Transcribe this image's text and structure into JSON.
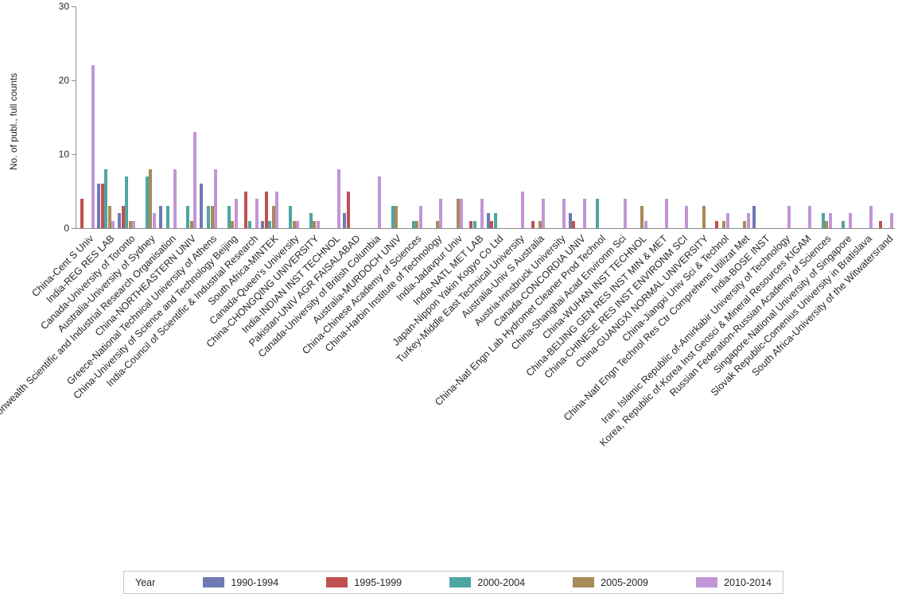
{
  "chart_data": {
    "type": "bar",
    "title": "",
    "ylabel": "No. of publ., full counts",
    "xlabel": "",
    "ylim": [
      0,
      30
    ],
    "yticks": [
      0,
      10,
      20,
      30
    ],
    "grid": false,
    "legend_position": "bottom",
    "legend_title": "Year",
    "categories": [
      "China-Cent S Univ",
      "India-REG RES LAB",
      "Canada-University of Toronto",
      "Australia-University of Sydney",
      "Australia-Commonwealth Scientific and Industrial Research Organisation",
      "China-NORTHEASTERN UNIV",
      "Greece-National Technical University of Athens",
      "China-University of Science and Technology Beijing",
      "India-Council of Scientific & Industrial Research",
      "South Africa-MINTEK",
      "Canada-Queen's University",
      "China-CHONGQING UNIVERSITY",
      "India-INDIAN INST TECHNOL",
      "Pakistan-UNIV AGR FAISALABAD",
      "Canada-University of British Columbia",
      "Australia-MURDOCH UNIV",
      "China-Chinese Academy of Sciences",
      "China-Harbin Institute of Technology",
      "India-Jadavpur Univ",
      "India-NATL MET LAB",
      "Japan-Nippon Yakin Kogyo Co Ltd",
      "Turkey-Middle East Technical University",
      "Australia-Univ S Australia",
      "Austria-Innsbruck University",
      "Canada-CONCORDIA UNIV",
      "China-Natl Engn Lab Hydromet Cleaner Prod Technol",
      "China-Shanghai Acad Environm Sci",
      "China-WUHAN INST TECHNOL",
      "China-BEIJING GEN RES INST MIN & MET",
      "China-CHINESE RES INST ENVIRONM SCI",
      "China-GUANGXI NORMAL UNIVERSITY",
      "China-Jiangxi Univ Sci & Technol",
      "China-Natl Engn Technol Res Ctr Comprehens Utilizat Met",
      "India-BOSE INST",
      "Iran, Islamic Republic of-Amirkabir University of Technology",
      "Korea, Republic of-Korea Inst Geosci & Mineral Resources KIGAM",
      "Russian Federation-Russian Academy of Sciences",
      "Singapore-National University of Singapore",
      "Slovak Republic-Comenius University in Bratislava",
      "South Africa-University of the Witwatersrand"
    ],
    "series": [
      {
        "name": "1990-1994",
        "color": "#6f79b2",
        "values": [
          0,
          6,
          2,
          0,
          3,
          0,
          6,
          0,
          0,
          1,
          0,
          0,
          0,
          2,
          0,
          0,
          0,
          0,
          0,
          0,
          2,
          0,
          0,
          0,
          2,
          0,
          0,
          0,
          0,
          0,
          0,
          0,
          0,
          3,
          0,
          0,
          0,
          0,
          0,
          0
        ]
      },
      {
        "name": "1995-1999",
        "color": "#bf5150",
        "values": [
          4,
          6,
          3,
          0,
          0,
          0,
          0,
          0,
          5,
          5,
          0,
          0,
          0,
          5,
          0,
          0,
          0,
          0,
          0,
          1,
          1,
          0,
          1,
          0,
          1,
          0,
          0,
          0,
          0,
          0,
          0,
          1,
          0,
          0,
          0,
          0,
          0,
          0,
          0,
          1
        ]
      },
      {
        "name": "2000-2004",
        "color": "#4fa5a2",
        "values": [
          0,
          8,
          7,
          7,
          3,
          3,
          3,
          3,
          1,
          1,
          3,
          2,
          0,
          0,
          0,
          3,
          1,
          0,
          0,
          1,
          2,
          0,
          0,
          0,
          0,
          4,
          0,
          0,
          0,
          0,
          0,
          0,
          0,
          0,
          0,
          0,
          2,
          1,
          0,
          0
        ]
      },
      {
        "name": "2005-2009",
        "color": "#a78b58",
        "values": [
          0,
          3,
          1,
          8,
          0,
          1,
          3,
          1,
          0,
          3,
          1,
          1,
          0,
          0,
          0,
          3,
          1,
          1,
          4,
          0,
          0,
          0,
          1,
          0,
          0,
          0,
          0,
          3,
          0,
          0,
          3,
          1,
          1,
          0,
          0,
          0,
          1,
          0,
          0,
          0
        ]
      },
      {
        "name": "2010-2014",
        "color": "#c295d6",
        "values": [
          22,
          1,
          1,
          2,
          8,
          13,
          8,
          4,
          4,
          5,
          1,
          1,
          8,
          0,
          7,
          0,
          3,
          4,
          4,
          4,
          0,
          5,
          4,
          4,
          4,
          0,
          4,
          1,
          4,
          3,
          0,
          2,
          2,
          0,
          3,
          3,
          2,
          2,
          3,
          2
        ]
      }
    ]
  }
}
